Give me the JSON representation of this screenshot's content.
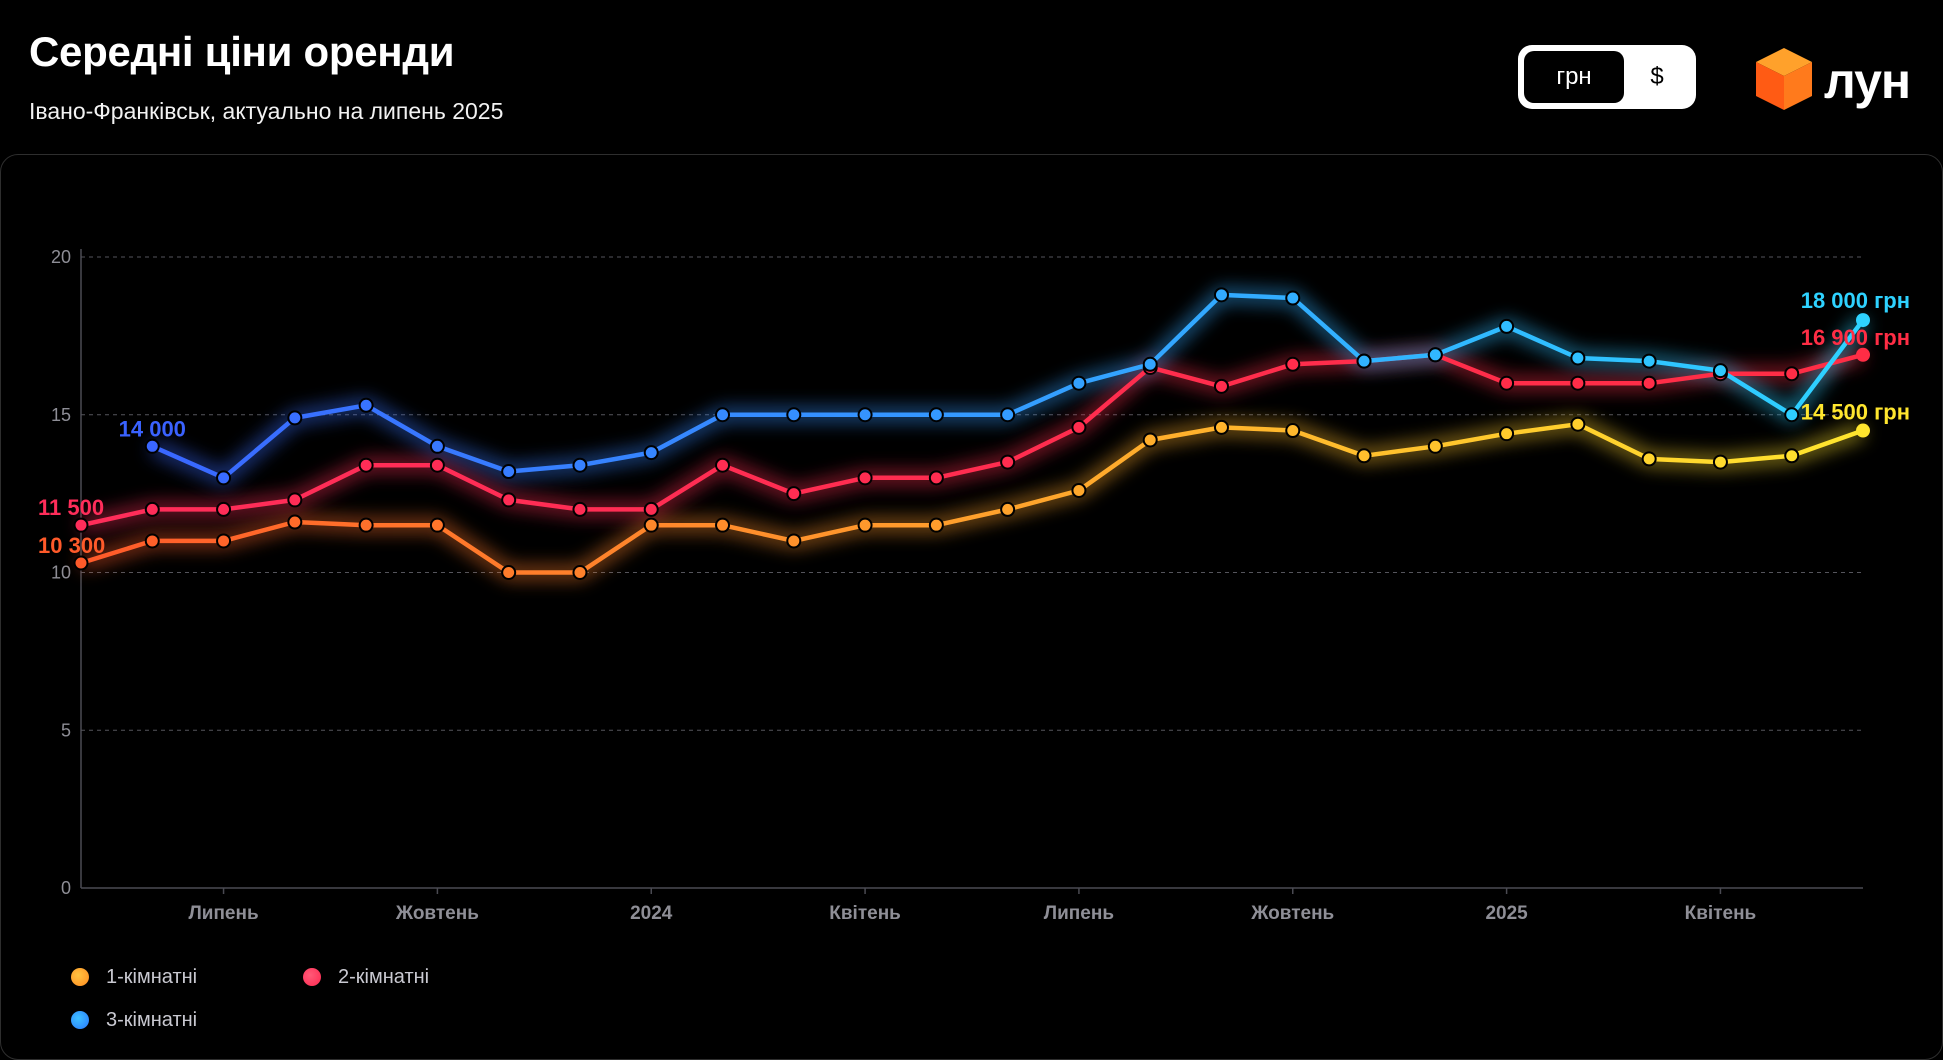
{
  "header": {
    "title": "Середні ціни оренди",
    "subtitle": "Івано-Франківськ, актуально на липень 2025"
  },
  "currency_toggle": {
    "options": [
      "грн",
      "$"
    ],
    "selected": "грн"
  },
  "logo": {
    "text": "лун",
    "icon": "orange-cube-icon"
  },
  "legend": [
    {
      "label": "1-кімнатні",
      "color": "#ffa21f"
    },
    {
      "label": "2-кімнатні",
      "color": "#ff2d5a"
    },
    {
      "label": "3-кімнатні",
      "color": "#2a9cff"
    }
  ],
  "chart_data": {
    "type": "line",
    "title": "Середні ціни оренди",
    "subtitle": "Івано-Франківськ, актуально на липень 2025",
    "x": [
      "2023-05",
      "2023-06",
      "2023-07",
      "2023-08",
      "2023-09",
      "2023-10",
      "2023-11",
      "2023-12",
      "2024-01",
      "2024-02",
      "2024-03",
      "2024-04",
      "2024-05",
      "2024-06",
      "2024-07",
      "2024-08",
      "2024-09",
      "2024-10",
      "2024-11",
      "2024-12",
      "2025-01",
      "2025-02",
      "2025-03",
      "2025-04",
      "2025-05",
      "2025-06"
    ],
    "x_tick_labels": [
      "Липень",
      "Жовтень",
      "2024",
      "Квітень",
      "Липень",
      "Жовтень",
      "2025",
      "Квітень"
    ],
    "x_tick_positions": [
      "2023-07",
      "2023-10",
      "2024-01",
      "2024-04",
      "2024-07",
      "2024-10",
      "2025-01",
      "2025-04"
    ],
    "ylim": [
      0,
      20
    ],
    "y_ticks": [
      0,
      5,
      10,
      15,
      20
    ],
    "grid": true,
    "legend_position": "bottom-left",
    "series": [
      {
        "name": "1-кімнатні",
        "color_start": "#ff5a2a",
        "color_end": "#ffe62e",
        "values": [
          10.3,
          11.0,
          11.0,
          11.6,
          11.5,
          11.5,
          10.0,
          10.0,
          11.5,
          11.5,
          11.0,
          11.5,
          11.5,
          12.0,
          12.6,
          14.2,
          14.6,
          14.5,
          13.7,
          14.0,
          14.4,
          14.7,
          13.6,
          13.5,
          13.7,
          14.5
        ],
        "start_label": "10 300",
        "end_label": "14 500 грн"
      },
      {
        "name": "2-кімнатні",
        "color_start": "#ff2d5a",
        "color_end": "#ff2d45",
        "values": [
          11.5,
          12.0,
          12.0,
          12.3,
          13.4,
          13.4,
          12.3,
          12.0,
          12.0,
          13.4,
          12.5,
          13.0,
          13.0,
          13.5,
          14.6,
          16.5,
          15.9,
          16.6,
          16.7,
          16.9,
          16.0,
          16.0,
          16.0,
          16.3,
          16.3,
          16.9
        ],
        "start_label": "11 500",
        "end_label": "16 900 грн"
      },
      {
        "name": "3-кімнатні",
        "color_start": "#3a62ff",
        "color_end": "#2ed2ff",
        "values": [
          null,
          14.0,
          13.0,
          14.9,
          15.3,
          14.0,
          13.2,
          13.4,
          13.8,
          15.0,
          15.0,
          15.0,
          15.0,
          15.0,
          16.0,
          16.6,
          18.8,
          18.7,
          16.7,
          16.9,
          17.8,
          16.8,
          16.7,
          16.4,
          15.0,
          18.0
        ],
        "start_label": "14 000",
        "end_label": "18 000 грн"
      }
    ]
  }
}
